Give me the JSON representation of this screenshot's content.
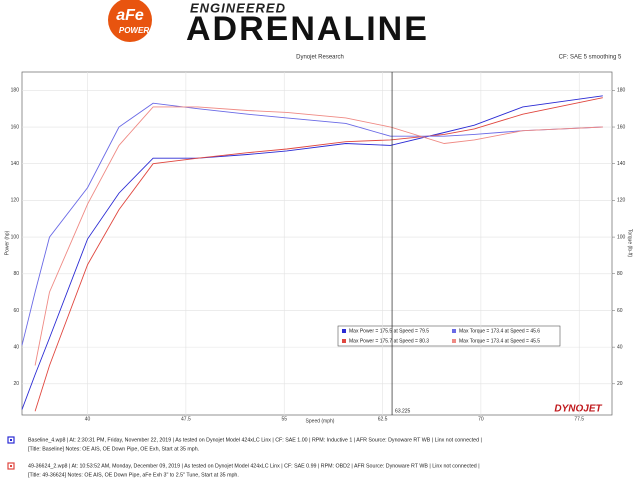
{
  "header": {
    "logo": "aFe",
    "logo_sub": "POWER",
    "tagline": "ENGINEERED",
    "headline": "ADRENALINE"
  },
  "chart_data": {
    "type": "line",
    "title": "Dynojet Research",
    "subtitle": "CF: SAE 5 smoothing 5",
    "x_label": "Speed (mph)",
    "y_label": "Power (hp)",
    "y2_label": "Torque (lb-ft)",
    "brand": "DYNOJET",
    "cursor": {
      "x": 63.225,
      "label": "63.225"
    },
    "x": [
      35,
      36,
      37.1,
      40,
      42.4,
      45,
      48.4,
      52.2,
      55.2,
      59.7,
      63.1,
      67.2,
      69.5,
      73.2,
      79.3
    ],
    "xlim": [
      35,
      80
    ],
    "xticks": [
      40,
      47.5,
      55,
      62.5,
      70,
      77.5
    ],
    "ylim": [
      3,
      190
    ],
    "yticks": [
      20,
      40,
      60,
      80,
      100,
      120,
      140,
      160,
      180
    ],
    "y2lim": [
      3,
      190
    ],
    "y2ticks": [
      20,
      40,
      60,
      80,
      100,
      120,
      140,
      160,
      180
    ],
    "grid": true,
    "series": [
      {
        "name": "Max Power = 175.5 at Speed = 79.5",
        "color": "#2b2bd4",
        "values": [
          6,
          25,
          45,
          99,
          124,
          143,
          143,
          145,
          147,
          151,
          150,
          157,
          161,
          171,
          177
        ]
      },
      {
        "name": "Max Power = 175.7 at Speed = 80.3",
        "color": "#e0473f",
        "values": [
          null,
          5,
          30,
          85,
          115,
          140,
          143,
          146,
          148,
          152,
          153,
          156,
          159,
          167,
          176
        ]
      },
      {
        "name": "Max Torque = 173.4 at Speed = 45.6",
        "color": "#6a6ae6",
        "axis": "y2",
        "values": [
          41,
          70,
          100,
          127,
          160,
          173,
          170,
          167,
          165,
          162,
          155,
          155,
          156,
          158,
          160
        ]
      },
      {
        "name": "Max Torque = 173.4 at Speed = 45.5",
        "color": "#ef8a84",
        "axis": "y2",
        "values": [
          null,
          30,
          70,
          118,
          150,
          171,
          171,
          169,
          168,
          165,
          160,
          151,
          153,
          158,
          160
        ]
      }
    ]
  },
  "runs": [
    {
      "color": "#2b2bd4",
      "line1": "Baseline_4.wp8 | At: 2:30:31 PM, Friday, November 22, 2019 | As tested on Dynojet Model 424xLC Linx | CF: SAE 1.00 | RPM: Inductive 1 | AFR Source: Dynoware RT WB | Linx not connected |",
      "line2": "[Title: Baseline] Notes: OE AIS, OE Down Pipe, OE Exh, Start at 35 mph."
    },
    {
      "color": "#e0473f",
      "line1": "49-36624_2.wp8 | At: 10:53:52 AM, Monday, December 09, 2019 | As tested on Dynojet Model 424xLC Linx | CF: SAE 0.99 | RPM: OBD2 | AFR Source: Dynoware RT WB | Linx not connected |",
      "line2": "[Title: 49-36624] Notes: OE AIS, OE Down Pipe, aFe Exh 3\" to 2.5\" Tune, Start at 35 mph."
    }
  ]
}
